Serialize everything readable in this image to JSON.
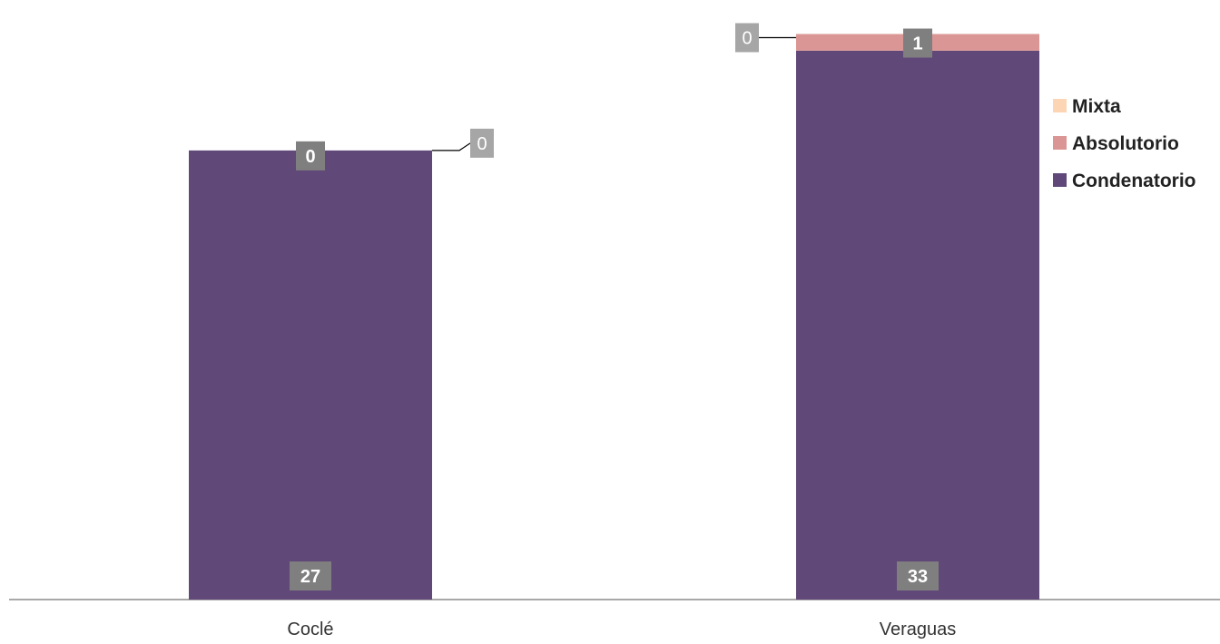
{
  "chart_data": {
    "type": "bar",
    "stacked": true,
    "categories": [
      "Coclé",
      "Veraguas"
    ],
    "series": [
      {
        "name": "Condenatorio",
        "values": [
          27,
          33
        ],
        "color": "#604878"
      },
      {
        "name": "Absolutorio",
        "values": [
          0,
          1
        ],
        "color": "#DA9694"
      },
      {
        "name": "Mixta",
        "values": [
          0,
          0
        ],
        "color": "#FCD5B4"
      }
    ],
    "data_labels": {
      "Coclé": {
        "Condenatorio": "27",
        "Absolutorio": "0",
        "Mixta": "0"
      },
      "Veraguas": {
        "Condenatorio": "33",
        "Absolutorio": "1",
        "Mixta": "0"
      }
    },
    "ylim": [
      0,
      35.5
    ],
    "legend": {
      "position": "right",
      "order": [
        "Mixta",
        "Absolutorio",
        "Condenatorio"
      ]
    },
    "grid": false,
    "title": "",
    "xlabel": "",
    "ylabel": ""
  }
}
